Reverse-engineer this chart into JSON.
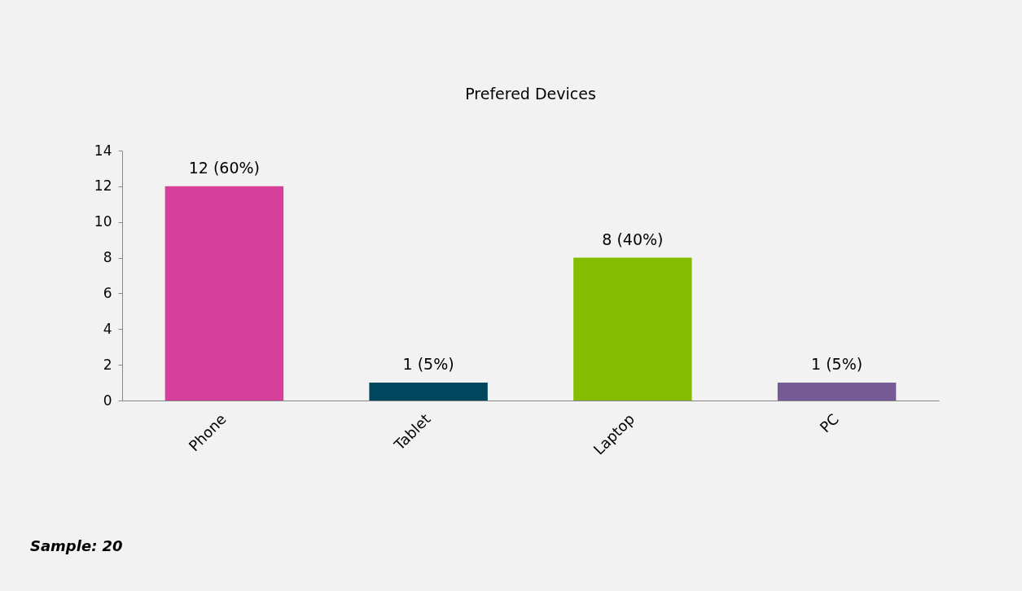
{
  "chart_data": {
    "type": "bar",
    "title": "Prefered Devices",
    "categories": [
      "Phone",
      "Tablet",
      "Laptop",
      "PC"
    ],
    "values": [
      12,
      1,
      8,
      1
    ],
    "colors": [
      "#d6409a",
      "#00465f",
      "#84bd00",
      "#765a95"
    ],
    "value_labels": [
      "12 (60%)",
      "1 (5%)",
      "8 (40%)",
      "1 (5%)"
    ],
    "ylim": [
      0,
      14
    ],
    "yticks": [
      0,
      2,
      4,
      6,
      8,
      10,
      12,
      14
    ],
    "grid": false,
    "annotations": [
      "Sample: 20"
    ]
  }
}
